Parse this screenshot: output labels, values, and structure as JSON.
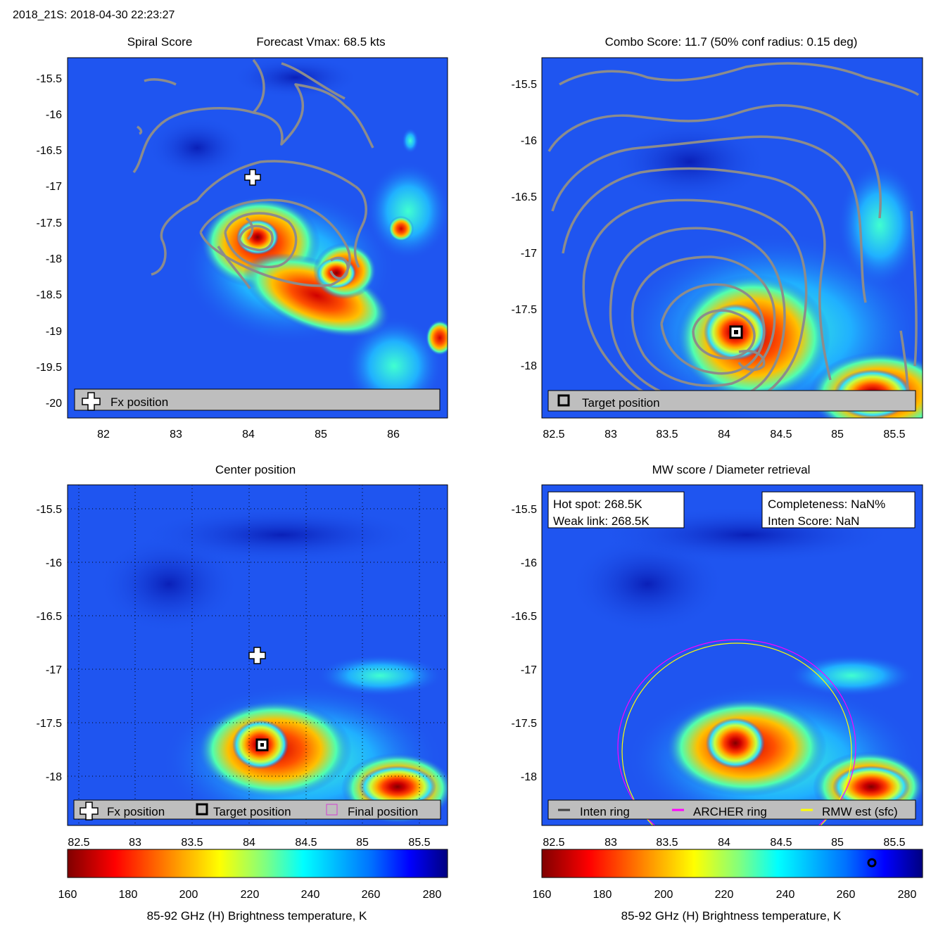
{
  "figure_title": "2018_21S: 2018-04-30 22:23:27",
  "colors": {
    "background": "#1f55f0",
    "contour": "#8c8c8c",
    "legend_bg": "#bebebe",
    "inten_ring": "#404040",
    "archer_ring": "#ff00ff",
    "rmw_ring": "#ffff00"
  },
  "colorbar": {
    "label": "85-92 GHz (H) Brightness temperature, K",
    "ticks": [
      "160",
      "180",
      "200",
      "220",
      "240",
      "260",
      "280"
    ],
    "range": [
      160,
      285
    ],
    "colormap": "jet",
    "marker_value": 268.5
  },
  "panels": {
    "spiral": {
      "title_left": "Spiral Score",
      "title_right": "Forecast Vmax: 68.5 kts",
      "legend": [
        "Fx position"
      ],
      "xticks": [
        "82",
        "83",
        "84",
        "85",
        "86"
      ],
      "yticks": [
        "-15.5",
        "-16",
        "-16.5",
        "-17",
        "-17.5",
        "-18",
        "-18.5",
        "-19",
        "-19.5",
        "-20"
      ]
    },
    "combo": {
      "title": "Combo Score: 11.7  (50% conf radius: 0.15 deg)",
      "legend": [
        "Target position"
      ],
      "xticks": [
        "82.5",
        "83",
        "83.5",
        "84",
        "84.5",
        "85",
        "85.5"
      ],
      "yticks": [
        "-15.5",
        "-16",
        "-16.5",
        "-17",
        "-17.5",
        "-18"
      ]
    },
    "center": {
      "title": "Center position",
      "legend": [
        "Fx position",
        "Target position",
        "Final position"
      ],
      "xticks": [
        "82.5",
        "83",
        "83.5",
        "84",
        "84.5",
        "85",
        "85.5"
      ],
      "yticks": [
        "-15.5",
        "-16",
        "-16.5",
        "-17",
        "-17.5",
        "-18"
      ]
    },
    "mw": {
      "title": "MW score / Diameter retrieval",
      "info_left": [
        "Hot spot: 268.5K",
        "Weak link: 268.5K"
      ],
      "info_right": [
        "Completeness: NaN%",
        "Inten Score: NaN"
      ],
      "legend": [
        "Inten ring",
        "ARCHER ring",
        "RMW est (sfc)"
      ],
      "xticks": [
        "82.5",
        "83",
        "83.5",
        "84",
        "84.5",
        "85",
        "85.5"
      ],
      "yticks": [
        "-15.5",
        "-16",
        "-16.5",
        "-17",
        "-17.5",
        "-18"
      ]
    }
  },
  "chart_data": [
    {
      "type": "heatmap",
      "title": "Spiral Score",
      "subtitle": "Forecast Vmax: 68.5 kts",
      "xlim": [
        81.5,
        86.75
      ],
      "ylim": [
        -20.2,
        -15.2
      ],
      "markers": [
        {
          "label": "Fx position",
          "x": 84.05,
          "y": -16.85
        }
      ],
      "features": [
        {
          "x": 84.15,
          "y": -17.75,
          "tb": 165
        },
        {
          "x": 84.75,
          "y": -18.6,
          "tb": 180
        },
        {
          "x": 85.2,
          "y": -18.2,
          "tb": 178
        },
        {
          "x": 85.95,
          "y": -17.45,
          "tb": 225
        }
      ]
    },
    {
      "type": "heatmap",
      "title": "Combo Score: 11.7  (50% conf radius: 0.15 deg)",
      "xlim": [
        82.1,
        85.85
      ],
      "ylim": [
        -18.47,
        -15.3
      ],
      "markers": [
        {
          "label": "Target position",
          "x": 84.11,
          "y": -17.72
        }
      ],
      "features": [
        {
          "x": 84.1,
          "y": -17.72,
          "tb": 165
        },
        {
          "x": 85.4,
          "y": -18.15,
          "tb": 180
        }
      ]
    },
    {
      "type": "heatmap",
      "title": "Center position",
      "xlim": [
        82.1,
        85.85
      ],
      "ylim": [
        -18.47,
        -15.3
      ],
      "grid": true,
      "markers": [
        {
          "label": "Fx position",
          "x": 84.07,
          "y": -16.86
        },
        {
          "label": "Target position",
          "x": 84.11,
          "y": -17.72
        }
      ],
      "features": [
        {
          "x": 84.1,
          "y": -17.72,
          "tb": 165
        },
        {
          "x": 85.25,
          "y": -18.15,
          "tb": 180
        }
      ]
    },
    {
      "type": "heatmap",
      "title": "MW score / Diameter retrieval",
      "xlim": [
        82.1,
        85.85
      ],
      "ylim": [
        -18.47,
        -15.3
      ],
      "rings": [
        {
          "label": "ARCHER ring",
          "x": 84.05,
          "y": -17.72,
          "r": 0.98
        },
        {
          "label": "RMW est (sfc)",
          "x": 84.07,
          "y": -17.72,
          "r": 0.96
        }
      ],
      "features": [
        {
          "x": 84.1,
          "y": -17.72,
          "tb": 165
        },
        {
          "x": 85.25,
          "y": -18.15,
          "tb": 180
        }
      ]
    }
  ]
}
